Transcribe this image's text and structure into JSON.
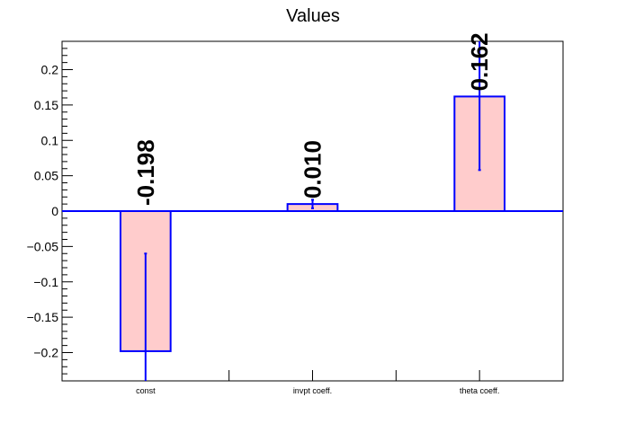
{
  "chart_data": {
    "type": "bar",
    "title": "Values",
    "xlabel": "",
    "ylabel": "",
    "categories": [
      "const",
      "invpt coeff.",
      "theta coeff."
    ],
    "values": [
      -0.198,
      0.01,
      0.162
    ],
    "value_labels": [
      "-0.198",
      "0.010",
      "0.162"
    ],
    "errors": [
      0.138,
      0.006,
      0.104
    ],
    "ylim": [
      -0.24,
      0.24
    ],
    "yticks": [
      -0.2,
      -0.15,
      -0.1,
      -0.05,
      0,
      0.05,
      0.1,
      0.15,
      0.2
    ],
    "ytick_labels": [
      "−0.2",
      "−0.15",
      "−0.1",
      "−0.05",
      "0",
      "0.05",
      "0.1",
      "0.15",
      "0.2"
    ],
    "grid": false,
    "legend": "none",
    "bar_fill_color": "#ffcccc",
    "bar_edge_color": "#0000ff",
    "error_bar_color": "#0000ff",
    "zero_line_color": "#0000ff"
  }
}
